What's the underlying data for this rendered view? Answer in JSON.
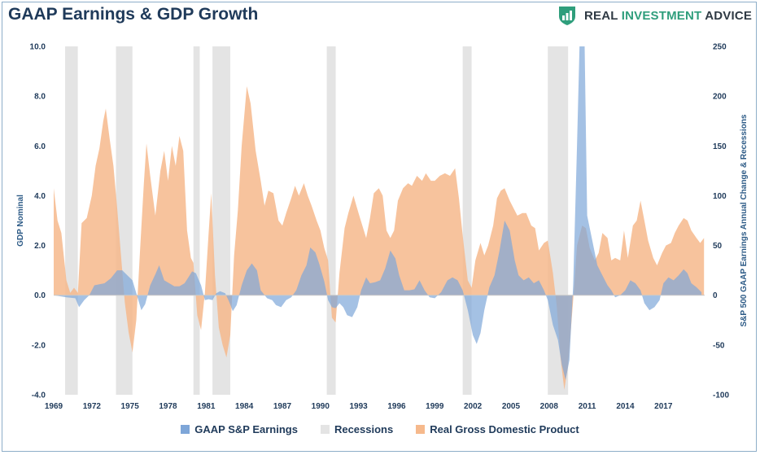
{
  "header": {
    "title": "GAAP Earnings & GDP Growth",
    "logo_main": "REAL ",
    "logo_accent": "INVESTMENT",
    "logo_tail": " ADVICE"
  },
  "colors": {
    "earnings": "#7ea6d8",
    "recession": "#e4e4e4",
    "gdp": "#f6b98c",
    "text": "#1f3a5a"
  },
  "chart_data": {
    "type": "area",
    "title": "GAAP Earnings & GDP Growth",
    "xlabel": "",
    "ylabel": "GDP Nominal",
    "y2label": "S&P 500 GAAP Earnings Annual Change & Recessions",
    "xlim": [
      1969,
      2020.25
    ],
    "ylim": [
      -4,
      10
    ],
    "y2lim": [
      -100,
      250
    ],
    "x_ticks": [
      "1969",
      "1972",
      "1975",
      "1978",
      "1981",
      "1984",
      "1987",
      "1990",
      "1993",
      "1996",
      "1999",
      "2002",
      "2005",
      "2008",
      "2011",
      "2014",
      "2017"
    ],
    "y_ticks": [
      "10.0",
      "8.0",
      "6.0",
      "4.0",
      "2.0",
      "0.0",
      "-2.0",
      "-4.0"
    ],
    "y2_ticks": [
      "250",
      "200",
      "150",
      "100",
      "50",
      "0",
      "-50",
      "-100"
    ],
    "legend": [
      "GAAP S&P Earnings",
      "Recessions",
      "Real Gross Domestic Product"
    ],
    "recessions": [
      [
        1969.9,
        1970.9
      ],
      [
        1973.9,
        1975.2
      ],
      [
        1980.0,
        1980.5
      ],
      [
        1981.5,
        1982.9
      ],
      [
        1990.5,
        1991.2
      ],
      [
        2001.2,
        2001.9
      ],
      [
        2007.9,
        2009.5
      ]
    ],
    "series": [
      {
        "name": "Real Gross Domestic Product",
        "axis": "left",
        "points": [
          [
            1969.0,
            4.3
          ],
          [
            1969.3,
            3.0
          ],
          [
            1969.6,
            2.5
          ],
          [
            1970.0,
            0.6
          ],
          [
            1970.3,
            0.1
          ],
          [
            1970.6,
            0.3
          ],
          [
            1970.9,
            0.1
          ],
          [
            1971.2,
            2.9
          ],
          [
            1971.6,
            3.1
          ],
          [
            1972.0,
            4.0
          ],
          [
            1972.3,
            5.2
          ],
          [
            1972.6,
            5.9
          ],
          [
            1972.9,
            7.0
          ],
          [
            1973.1,
            7.5
          ],
          [
            1973.4,
            6.3
          ],
          [
            1973.7,
            5.2
          ],
          [
            1974.0,
            3.5
          ],
          [
            1974.3,
            1.6
          ],
          [
            1974.6,
            -0.3
          ],
          [
            1974.9,
            -1.5
          ],
          [
            1975.2,
            -2.3
          ],
          [
            1975.5,
            -1.0
          ],
          [
            1975.8,
            1.8
          ],
          [
            1976.1,
            4.5
          ],
          [
            1976.3,
            6.1
          ],
          [
            1976.6,
            4.8
          ],
          [
            1977.0,
            3.2
          ],
          [
            1977.4,
            5.0
          ],
          [
            1977.7,
            5.8
          ],
          [
            1978.0,
            4.6
          ],
          [
            1978.3,
            6.0
          ],
          [
            1978.6,
            5.2
          ],
          [
            1978.9,
            6.4
          ],
          [
            1979.2,
            5.8
          ],
          [
            1979.5,
            2.6
          ],
          [
            1979.8,
            1.5
          ],
          [
            1980.0,
            1.3
          ],
          [
            1980.3,
            -0.8
          ],
          [
            1980.6,
            -1.4
          ],
          [
            1980.9,
            0.1
          ],
          [
            1981.2,
            2.5
          ],
          [
            1981.4,
            4.1
          ],
          [
            1981.7,
            0.8
          ],
          [
            1982.0,
            -1.3
          ],
          [
            1982.3,
            -2.0
          ],
          [
            1982.6,
            -2.5
          ],
          [
            1982.9,
            -1.6
          ],
          [
            1983.2,
            1.6
          ],
          [
            1983.5,
            3.4
          ],
          [
            1983.8,
            6.0
          ],
          [
            1984.2,
            8.4
          ],
          [
            1984.5,
            7.7
          ],
          [
            1984.9,
            5.8
          ],
          [
            1985.3,
            4.6
          ],
          [
            1985.6,
            3.6
          ],
          [
            1985.9,
            4.2
          ],
          [
            1986.3,
            4.1
          ],
          [
            1986.7,
            3.0
          ],
          [
            1987.0,
            2.8
          ],
          [
            1987.3,
            3.3
          ],
          [
            1987.7,
            3.9
          ],
          [
            1988.0,
            4.4
          ],
          [
            1988.3,
            4.0
          ],
          [
            1988.7,
            4.5
          ],
          [
            1989.0,
            4.0
          ],
          [
            1989.3,
            3.6
          ],
          [
            1989.7,
            3.0
          ],
          [
            1990.0,
            2.6
          ],
          [
            1990.3,
            1.9
          ],
          [
            1990.6,
            1.4
          ],
          [
            1990.9,
            -0.9
          ],
          [
            1991.2,
            -1.1
          ],
          [
            1991.5,
            0.9
          ],
          [
            1991.9,
            2.7
          ],
          [
            1992.2,
            3.3
          ],
          [
            1992.6,
            4.0
          ],
          [
            1993.0,
            3.3
          ],
          [
            1993.3,
            2.8
          ],
          [
            1993.6,
            2.3
          ],
          [
            1993.9,
            3.1
          ],
          [
            1994.2,
            4.1
          ],
          [
            1994.6,
            4.3
          ],
          [
            1994.9,
            4.0
          ],
          [
            1995.2,
            2.6
          ],
          [
            1995.5,
            2.3
          ],
          [
            1995.8,
            2.6
          ],
          [
            1996.1,
            3.8
          ],
          [
            1996.5,
            4.3
          ],
          [
            1996.9,
            4.5
          ],
          [
            1997.2,
            4.4
          ],
          [
            1997.6,
            4.8
          ],
          [
            1998.0,
            4.6
          ],
          [
            1998.3,
            4.9
          ],
          [
            1998.7,
            4.6
          ],
          [
            1999.0,
            4.6
          ],
          [
            1999.4,
            4.8
          ],
          [
            1999.8,
            4.9
          ],
          [
            2000.2,
            4.8
          ],
          [
            2000.6,
            5.1
          ],
          [
            2000.9,
            3.9
          ],
          [
            2001.2,
            2.4
          ],
          [
            2001.6,
            0.6
          ],
          [
            2001.9,
            0.3
          ],
          [
            2002.2,
            1.4
          ],
          [
            2002.6,
            2.1
          ],
          [
            2002.9,
            1.6
          ],
          [
            2003.2,
            2.0
          ],
          [
            2003.6,
            2.8
          ],
          [
            2003.9,
            3.9
          ],
          [
            2004.2,
            4.2
          ],
          [
            2004.5,
            4.3
          ],
          [
            2004.9,
            3.8
          ],
          [
            2005.2,
            3.5
          ],
          [
            2005.5,
            3.2
          ],
          [
            2005.9,
            3.3
          ],
          [
            2006.2,
            3.3
          ],
          [
            2006.6,
            2.8
          ],
          [
            2006.9,
            2.7
          ],
          [
            2007.2,
            1.8
          ],
          [
            2007.6,
            2.1
          ],
          [
            2007.9,
            2.2
          ],
          [
            2008.3,
            0.9
          ],
          [
            2008.6,
            -0.4
          ],
          [
            2008.9,
            -2.5
          ],
          [
            2009.2,
            -3.8
          ],
          [
            2009.5,
            -2.8
          ],
          [
            2009.9,
            -0.2
          ],
          [
            2010.2,
            2.0
          ],
          [
            2010.6,
            2.8
          ],
          [
            2010.9,
            2.7
          ],
          [
            2011.2,
            1.9
          ],
          [
            2011.6,
            1.4
          ],
          [
            2011.9,
            1.7
          ],
          [
            2012.2,
            2.5
          ],
          [
            2012.6,
            2.3
          ],
          [
            2012.9,
            1.4
          ],
          [
            2013.2,
            1.5
          ],
          [
            2013.6,
            1.4
          ],
          [
            2013.9,
            2.6
          ],
          [
            2014.2,
            1.5
          ],
          [
            2014.6,
            2.8
          ],
          [
            2014.9,
            3.0
          ],
          [
            2015.2,
            3.8
          ],
          [
            2015.5,
            3.0
          ],
          [
            2015.8,
            2.2
          ],
          [
            2016.2,
            1.5
          ],
          [
            2016.5,
            1.2
          ],
          [
            2016.9,
            1.7
          ],
          [
            2017.2,
            2.0
          ],
          [
            2017.6,
            2.1
          ],
          [
            2017.9,
            2.5
          ],
          [
            2018.2,
            2.8
          ],
          [
            2018.6,
            3.1
          ],
          [
            2018.9,
            3.0
          ],
          [
            2019.2,
            2.6
          ],
          [
            2019.6,
            2.3
          ],
          [
            2019.9,
            2.1
          ],
          [
            2020.2,
            2.3
          ]
        ]
      },
      {
        "name": "GAAP S&P Earnings",
        "axis": "right",
        "points": [
          [
            1969.0,
            0
          ],
          [
            1970.0,
            -2
          ],
          [
            1970.7,
            -3
          ],
          [
            1971.0,
            -12
          ],
          [
            1971.4,
            -5
          ],
          [
            1971.8,
            0
          ],
          [
            1972.2,
            10
          ],
          [
            1972.6,
            11
          ],
          [
            1973.0,
            12
          ],
          [
            1973.5,
            17
          ],
          [
            1974.0,
            25
          ],
          [
            1974.4,
            25
          ],
          [
            1974.8,
            20
          ],
          [
            1975.2,
            15
          ],
          [
            1975.6,
            -2
          ],
          [
            1975.9,
            -15
          ],
          [
            1976.2,
            -9
          ],
          [
            1976.6,
            10
          ],
          [
            1977.0,
            21
          ],
          [
            1977.3,
            30
          ],
          [
            1977.7,
            15
          ],
          [
            1978.1,
            12
          ],
          [
            1978.5,
            9
          ],
          [
            1978.9,
            9
          ],
          [
            1979.3,
            12
          ],
          [
            1979.6,
            18
          ],
          [
            1979.9,
            24
          ],
          [
            1980.2,
            22
          ],
          [
            1980.6,
            10
          ],
          [
            1980.9,
            -5
          ],
          [
            1981.2,
            -4
          ],
          [
            1981.5,
            -5
          ],
          [
            1981.8,
            2
          ],
          [
            1982.1,
            4
          ],
          [
            1982.5,
            2
          ],
          [
            1982.8,
            -6
          ],
          [
            1983.1,
            -16
          ],
          [
            1983.4,
            -10
          ],
          [
            1983.8,
            10
          ],
          [
            1984.2,
            25
          ],
          [
            1984.6,
            32
          ],
          [
            1985.0,
            25
          ],
          [
            1985.3,
            5
          ],
          [
            1985.8,
            -3
          ],
          [
            1986.2,
            -5
          ],
          [
            1986.5,
            -10
          ],
          [
            1986.9,
            -12
          ],
          [
            1987.3,
            -5
          ],
          [
            1987.7,
            -2
          ],
          [
            1988.1,
            5
          ],
          [
            1988.5,
            20
          ],
          [
            1988.9,
            30
          ],
          [
            1989.2,
            48
          ],
          [
            1989.6,
            43
          ],
          [
            1989.9,
            32
          ],
          [
            1990.3,
            14
          ],
          [
            1990.6,
            -5
          ],
          [
            1990.9,
            -12
          ],
          [
            1991.2,
            -13
          ],
          [
            1991.5,
            -8
          ],
          [
            1991.8,
            -12
          ],
          [
            1992.1,
            -20
          ],
          [
            1992.5,
            -22
          ],
          [
            1992.9,
            -12
          ],
          [
            1993.2,
            5
          ],
          [
            1993.6,
            18
          ],
          [
            1993.9,
            12
          ],
          [
            1994.3,
            13
          ],
          [
            1994.7,
            15
          ],
          [
            1995.1,
            27
          ],
          [
            1995.5,
            45
          ],
          [
            1995.9,
            37
          ],
          [
            1996.2,
            20
          ],
          [
            1996.6,
            5
          ],
          [
            1997.0,
            5
          ],
          [
            1997.4,
            6
          ],
          [
            1997.8,
            15
          ],
          [
            1998.2,
            5
          ],
          [
            1998.6,
            -2
          ],
          [
            1999.0,
            -3
          ],
          [
            1999.5,
            3
          ],
          [
            2000.0,
            15
          ],
          [
            2000.4,
            18
          ],
          [
            2000.8,
            15
          ],
          [
            2001.2,
            5
          ],
          [
            2001.6,
            -15
          ],
          [
            2002.0,
            -40
          ],
          [
            2002.3,
            -49
          ],
          [
            2002.6,
            -38
          ],
          [
            2002.9,
            -15
          ],
          [
            2003.3,
            8
          ],
          [
            2003.7,
            20
          ],
          [
            2004.1,
            45
          ],
          [
            2004.5,
            75
          ],
          [
            2004.9,
            65
          ],
          [
            2005.3,
            35
          ],
          [
            2005.6,
            20
          ],
          [
            2006.0,
            15
          ],
          [
            2006.4,
            18
          ],
          [
            2006.8,
            12
          ],
          [
            2007.2,
            15
          ],
          [
            2007.6,
            5
          ],
          [
            2007.9,
            -5
          ],
          [
            2008.3,
            -30
          ],
          [
            2008.7,
            -45
          ],
          [
            2009.0,
            -70
          ],
          [
            2009.3,
            -85
          ],
          [
            2009.6,
            -65
          ],
          [
            2009.9,
            10
          ],
          [
            2010.2,
            150
          ],
          [
            2010.4,
            260
          ],
          [
            2010.8,
            260
          ],
          [
            2011.0,
            80
          ],
          [
            2011.4,
            55
          ],
          [
            2011.8,
            30
          ],
          [
            2012.2,
            20
          ],
          [
            2012.6,
            10
          ],
          [
            2012.9,
            5
          ],
          [
            2013.2,
            -2
          ],
          [
            2013.6,
            0
          ],
          [
            2014.0,
            5
          ],
          [
            2014.4,
            15
          ],
          [
            2014.8,
            12
          ],
          [
            2015.2,
            5
          ],
          [
            2015.5,
            -8
          ],
          [
            2015.9,
            -15
          ],
          [
            2016.3,
            -12
          ],
          [
            2016.7,
            -5
          ],
          [
            2017.0,
            12
          ],
          [
            2017.4,
            18
          ],
          [
            2017.8,
            15
          ],
          [
            2018.2,
            20
          ],
          [
            2018.6,
            26
          ],
          [
            2018.9,
            22
          ],
          [
            2019.2,
            12
          ],
          [
            2019.6,
            8
          ],
          [
            2020.0,
            3
          ]
        ]
      }
    ]
  }
}
